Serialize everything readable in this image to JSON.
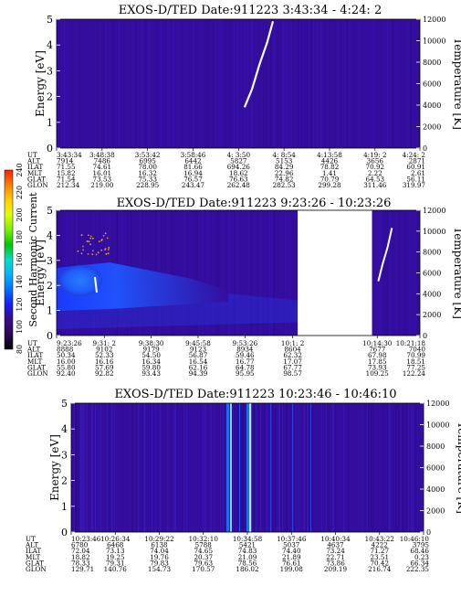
{
  "colors": {
    "background": "#330d9e",
    "lightning": "#ffffff",
    "trace": "#ffffff"
  },
  "colorbar": {
    "label": "Second Harmonic Current",
    "ticks": [
      "80",
      "100",
      "120",
      "140",
      "160",
      "180",
      "200",
      "220",
      "240"
    ],
    "stops": [
      "#000000",
      "#2a0a55",
      "#3a0c8c",
      "#1a1aff",
      "#0070ff",
      "#00b4ff",
      "#00e0c8",
      "#00c800",
      "#7cf000",
      "#e0ff00",
      "#ffd000",
      "#ff8000",
      "#ff2000"
    ]
  },
  "chart_data": [
    {
      "type": "heatmap",
      "title": "EXOS-D/TED   Date:911223   3:43:34 - 4:24: 2",
      "ylabel": "Energy [eV]",
      "ylabel_right": "Temperature [K]",
      "ylim": [
        0,
        5
      ],
      "ylim_right": [
        0,
        12000
      ],
      "yticks": [
        "0",
        "1",
        "2",
        "3",
        "4",
        "5"
      ],
      "yticks_right": [
        "0",
        "2000",
        "4000",
        "6000",
        "8000",
        "10000",
        "12000"
      ],
      "row_labels": [
        "UT",
        "ALT",
        "ILAT",
        "MLT",
        "GLAT",
        "GLON"
      ],
      "columns": [
        [
          "3:43:34",
          "7914",
          "71.55",
          "15.82",
          "71.54",
          "212.34"
        ],
        [
          "3:48:38",
          "7486",
          "74.61",
          "16.01",
          "73.53",
          "219.00"
        ],
        [
          "3:53:42",
          "6995",
          "78.00",
          "16.32",
          "75.33",
          "228.95"
        ],
        [
          "3:58:46",
          "6442",
          "81.66",
          "16.94",
          "76.57",
          "243.47"
        ],
        [
          "4: 3:50",
          "5827",
          "694.26",
          "18.62",
          "76.63",
          "262.48"
        ],
        [
          "4: 8:54",
          "5153",
          "84.29",
          "22.96",
          "74.82",
          "282.53"
        ],
        [
          "4:13:58",
          "4426",
          "78.82",
          "1.41",
          "70.79",
          "299.28"
        ],
        [
          "4:19: 2",
          "3656",
          "70.92",
          "2.22",
          "64.53",
          "311.46"
        ],
        [
          "4:24: 2",
          "2871",
          "60.91",
          "2.61",
          "56.11",
          "319.97"
        ]
      ],
      "temperature_trace": [
        {
          "t": "4:4:30",
          "T": 3800
        },
        {
          "t": "4:5:20",
          "T": 5500
        },
        {
          "t": "4:6:10",
          "T": 7800
        },
        {
          "t": "4:7:00",
          "T": 9800
        },
        {
          "t": "4:7:40",
          "T": 11800
        }
      ]
    },
    {
      "type": "heatmap",
      "title": "EXOS-D/TED   Date:911223   9:23:26 - 10:23:26",
      "ylabel": "Energy [eV]",
      "ylabel_right": "Temperature [K]",
      "ylim": [
        0,
        5
      ],
      "ylim_right": [
        0,
        12000
      ],
      "yticks": [
        "0",
        "1",
        "2",
        "3",
        "4",
        "5"
      ],
      "yticks_right": [
        "0",
        "2000",
        "4000",
        "6000",
        "8000",
        "10000",
        "12000"
      ],
      "row_labels": [
        "UT",
        "ALT",
        "ILAT",
        "MLT",
        "GLAT",
        "GLON"
      ],
      "data_gap": [
        "10:1:50",
        "10:13:40"
      ],
      "columns": [
        [
          "9:23:26",
          "8888",
          "50.34",
          "16.00",
          "55.80",
          "92.40"
        ],
        [
          "9:31: 2",
          "9102",
          "52.33",
          "16.16",
          "57.69",
          "92.82"
        ],
        [
          "9:38:30",
          "9179",
          "54.50",
          "16.34",
          "59.80",
          "93.43"
        ],
        [
          "9:45:58",
          "9123",
          "56.87",
          "16.54",
          "62.16",
          "94.39"
        ],
        [
          "9:53:26",
          "8934",
          "59.46",
          "16.77",
          "64.78",
          "95.95"
        ],
        [
          "10:1: 2",
          "8604",
          "62.32",
          "17.07",
          "67.77",
          "98.57"
        ],
        [
          "10:14:30",
          "7677",
          "67.98",
          "17.85",
          "73.93",
          "109.25"
        ],
        [
          "10:21:18",
          "7040",
          "70.99",
          "18.51",
          "77.25",
          "122.24"
        ]
      ],
      "temperature_trace": [
        {
          "t": "10:14:40",
          "T": 5200
        },
        {
          "t": "10:15:20",
          "T": 6800
        },
        {
          "t": "10:16:10",
          "T": 8500
        },
        {
          "t": "10:16:50",
          "T": 10300
        }
      ]
    },
    {
      "type": "heatmap",
      "title": "EXOS-D/TED   Date:911223   10:23:46 - 10:46:10",
      "ylabel": "Energy [eV]",
      "ylabel_right": "Temperature [K]",
      "ylim": [
        0,
        5
      ],
      "ylim_right": [
        0,
        12000
      ],
      "yticks": [
        "0",
        "1",
        "2",
        "3",
        "4",
        "5"
      ],
      "yticks_right": [
        "0",
        "2000",
        "4000",
        "6000",
        "8000",
        "10000",
        "12000"
      ],
      "row_labels": [
        "UT",
        "ALT",
        "ILAT",
        "MLT",
        "GLAT",
        "GLON"
      ],
      "columns": [
        [
          "10:23:46",
          "6780",
          "72.04",
          "18.82",
          "78.33",
          "129.71"
        ],
        [
          "10:26:34",
          "6468",
          "73.13",
          "19.25",
          "79.31",
          "140.76"
        ],
        [
          "10:29:22",
          "6138",
          "74.04",
          "19.76",
          "79.83",
          "154.73"
        ],
        [
          "10:32:10",
          "5788",
          "74.65",
          "20.37",
          "79.63",
          "170.57"
        ],
        [
          "10:34:58",
          "5421",
          "74.83",
          "21.09",
          "78.56",
          "186.02"
        ],
        [
          "10:37:46",
          "5037",
          "74.40",
          "21.89",
          "76.61",
          "199.08"
        ],
        [
          "10:40:34",
          "4637",
          "73.24",
          "22.71",
          "73.86",
          "209.19"
        ],
        [
          "10:43:22",
          "4222",
          "71.27",
          "23.51",
          "70.42",
          "216.74"
        ],
        [
          "10:46:10",
          "3795",
          "68.46",
          "0.23",
          "66.34",
          "222.35"
        ]
      ]
    }
  ]
}
